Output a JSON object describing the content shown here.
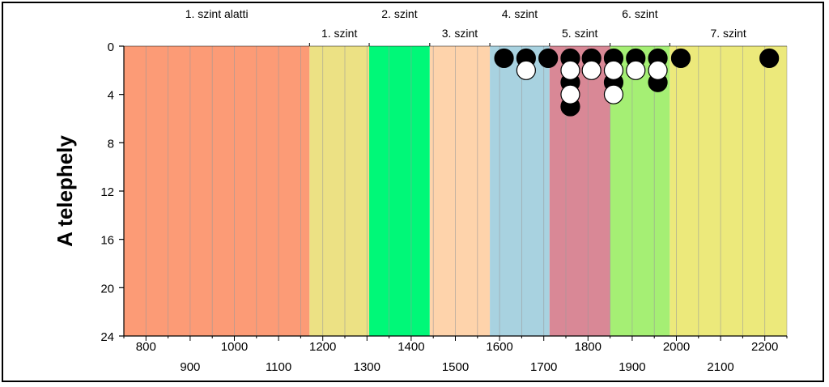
{
  "chart_data": {
    "type": "scatter",
    "title": "",
    "ylabel": "A telephely",
    "xlim": [
      750,
      2250
    ],
    "ylim": [
      0,
      24
    ],
    "y_inverted": true,
    "grid": true,
    "y_ticks": [
      0,
      4,
      8,
      12,
      16,
      20,
      24
    ],
    "x_ticks_upper": [
      800,
      1000,
      1200,
      1400,
      1600,
      1800,
      2000,
      2200
    ],
    "x_ticks_lower": [
      900,
      1100,
      1300,
      1500,
      1700,
      1900,
      2100
    ],
    "x_tick_labels_upper": [
      "800",
      "1000",
      "1200",
      "1400",
      "1600",
      "1800",
      "2000",
      "2200"
    ],
    "x_tick_labels_lower": [
      "900",
      "1100",
      "1300",
      "1500",
      "1700",
      "1900",
      "2100"
    ],
    "y_tick_labels": [
      "0",
      "4",
      "8",
      "12",
      "16",
      "20",
      "24"
    ],
    "bands": [
      {
        "label": "1. szint alatti",
        "x0": 750,
        "x1": 1170,
        "color": "#fc9b76",
        "label_row": "top"
      },
      {
        "label": "1. szint",
        "x0": 1170,
        "x1": 1305,
        "color": "#ece184",
        "label_row": "bottom"
      },
      {
        "label": "2. szint",
        "x0": 1305,
        "x1": 1442,
        "color": "#00f878",
        "label_row": "top"
      },
      {
        "label": "3. szint",
        "x0": 1442,
        "x1": 1578,
        "color": "#fed3ab",
        "label_row": "bottom"
      },
      {
        "label": "4. szint",
        "x0": 1578,
        "x1": 1713,
        "color": "#a8d2e0",
        "label_row": "top"
      },
      {
        "label": "5. szint",
        "x0": 1713,
        "x1": 1850,
        "color": "#d98896",
        "label_row": "bottom"
      },
      {
        "label": "6. szint",
        "x0": 1850,
        "x1": 1985,
        "color": "#a5ef74",
        "label_row": "top"
      },
      {
        "label": "7. szint",
        "x0": 1985,
        "x1": 2250,
        "color": "#ece97b",
        "label_row": "bottom"
      }
    ],
    "series": [
      {
        "marker": "filled",
        "color": "#000000",
        "points": [
          [
            1610,
            1
          ],
          [
            1660,
            1
          ],
          [
            1710,
            1
          ],
          [
            1760,
            1
          ],
          [
            1760,
            3
          ],
          [
            1760,
            5
          ],
          [
            1808,
            1
          ],
          [
            1858,
            1
          ],
          [
            1858,
            3
          ],
          [
            1908,
            1
          ],
          [
            1958,
            1
          ],
          [
            1958,
            3
          ],
          [
            2010,
            1
          ],
          [
            2210,
            1
          ]
        ]
      },
      {
        "marker": "open",
        "color": "#ffffff",
        "points": [
          [
            1660,
            2
          ],
          [
            1760,
            2
          ],
          [
            1760,
            4
          ],
          [
            1808,
            2
          ],
          [
            1858,
            2
          ],
          [
            1858,
            4
          ],
          [
            1908,
            2
          ],
          [
            1958,
            2
          ]
        ]
      }
    ]
  }
}
